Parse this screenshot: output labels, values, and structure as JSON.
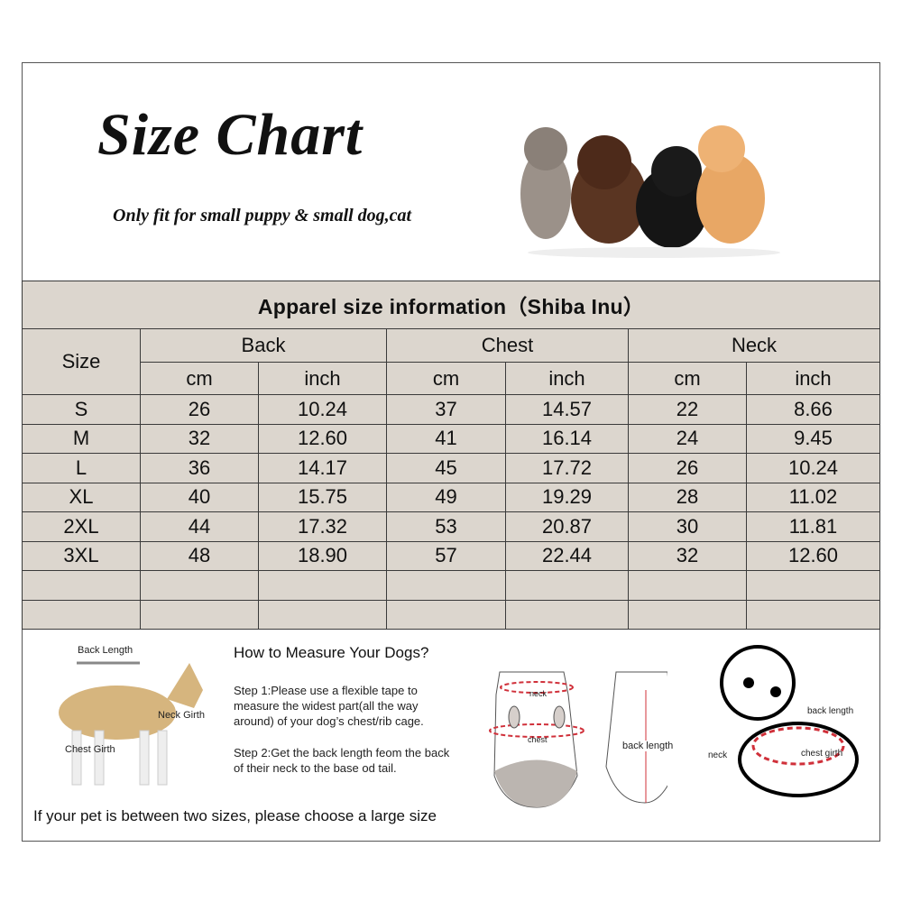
{
  "header": {
    "title": "Size Chart",
    "subtitle": "Only fit for  small puppy & small dog,cat"
  },
  "table": {
    "caption": "Apparel  size  information（Shiba Inu）",
    "size_header": "Size",
    "groups": [
      "Back",
      "Chest",
      "Neck"
    ],
    "units": [
      "cm",
      "inch"
    ],
    "rows": [
      [
        "S",
        "26",
        "10.24",
        "37",
        "14.57",
        "22",
        "8.66"
      ],
      [
        "M",
        "32",
        "12.60",
        "41",
        "16.14",
        "24",
        "9.45"
      ],
      [
        "L",
        "36",
        "14.17",
        "45",
        "17.72",
        "26",
        "10.24"
      ],
      [
        "XL",
        "40",
        "15.75",
        "49",
        "19.29",
        "28",
        "11.02"
      ],
      [
        "2XL",
        "44",
        "17.32",
        "53",
        "20.87",
        "30",
        "11.81"
      ],
      [
        "3XL",
        "48",
        "18.90",
        "57",
        "22.44",
        "32",
        "12.60"
      ],
      [
        "",
        "",
        "",
        "",
        "",
        "",
        ""
      ],
      [
        "",
        "",
        "",
        "",
        "",
        "",
        ""
      ]
    ],
    "background_color": "#dcd6ce"
  },
  "measure": {
    "dog_labels": {
      "back_length": "Back Length",
      "neck_girth": "Neck Girth",
      "chest_girth": "Chest Girth"
    },
    "heading": "How to Measure Your Dogs?",
    "step1": "Step 1:Please use a flexible tape to measure the widest part(all the way around) of your dog’s chest/rib cage.",
    "step2": "Step 2:Get the back length feom the back of their neck to the base od tail.",
    "garment_labels": {
      "neck": "neck",
      "chest": "chest",
      "back_length": "back length"
    },
    "puppy_labels": {
      "back_length": "back length",
      "neck": "neck",
      "chest_girth": "chest girth"
    },
    "note": "If your pet is between two sizes, please choose a large size",
    "accent_color": "#d0303a"
  }
}
